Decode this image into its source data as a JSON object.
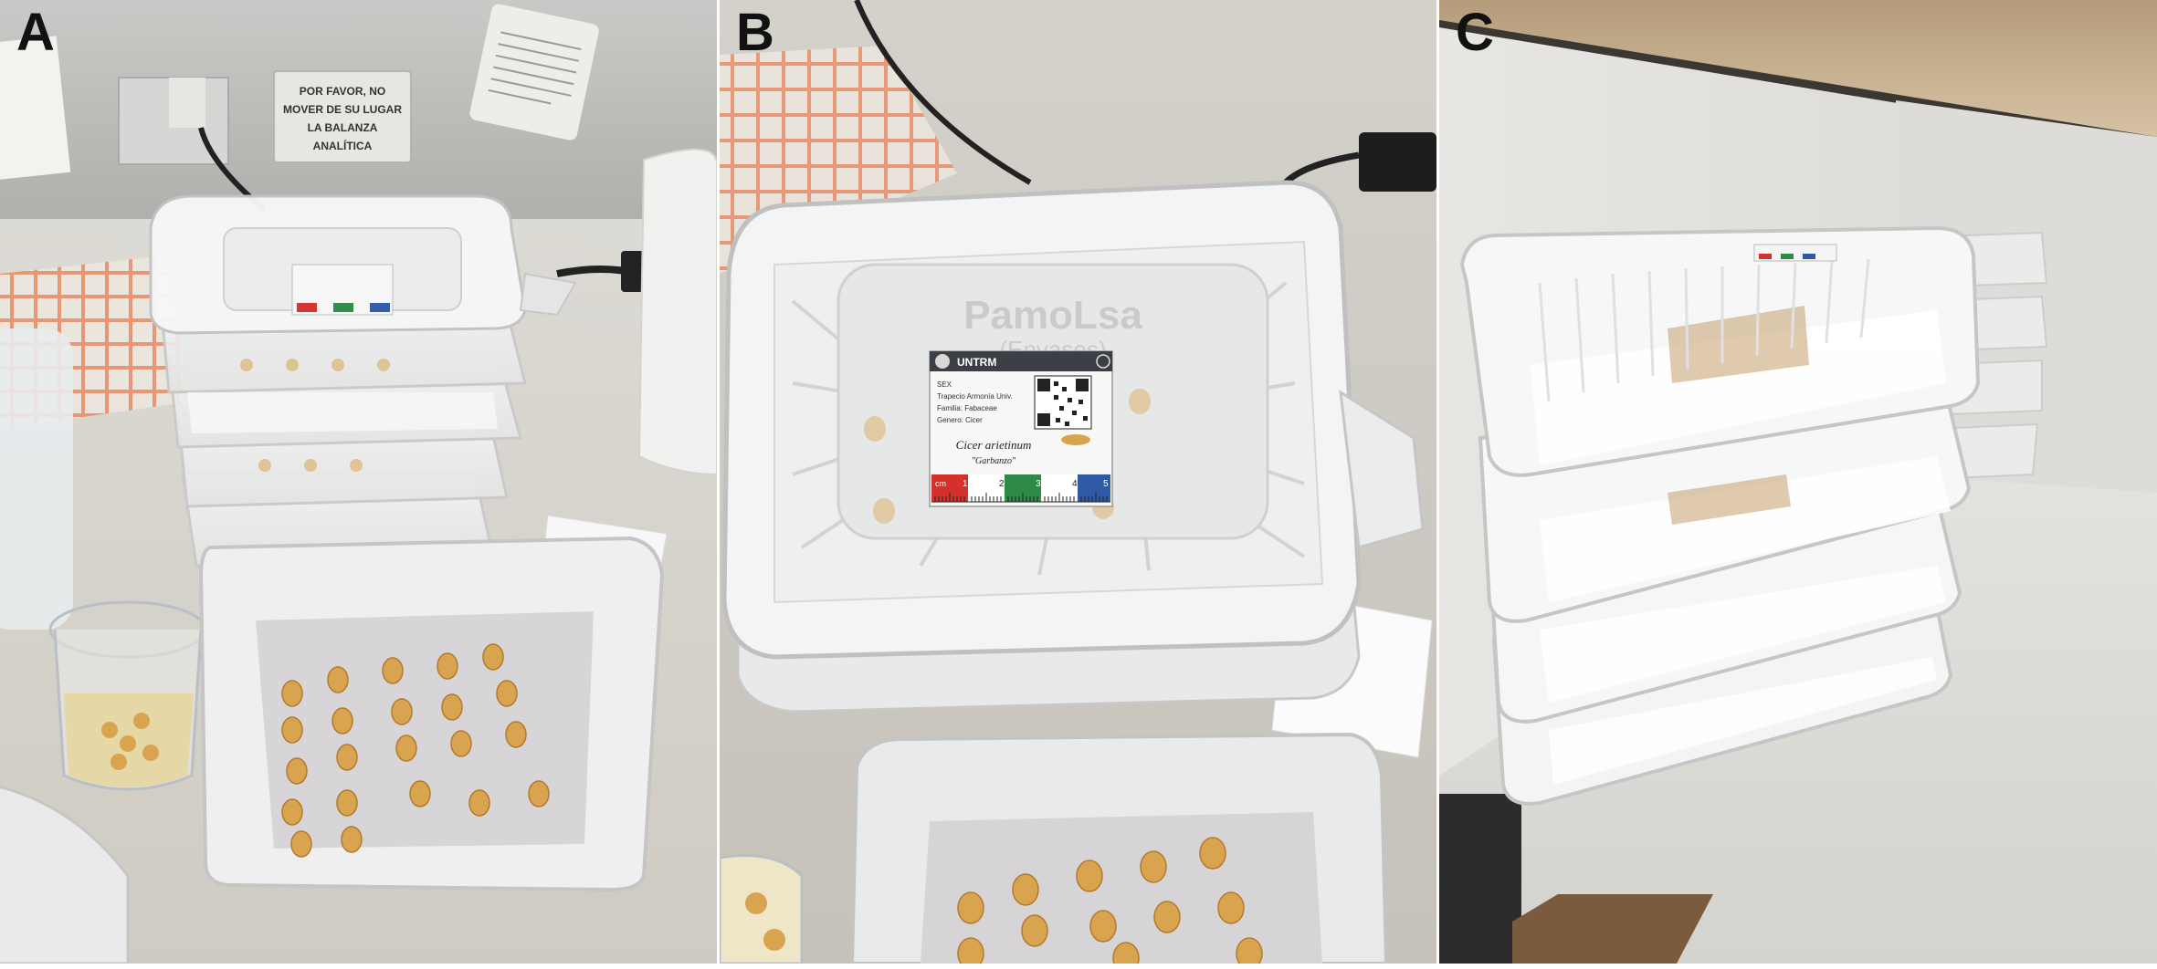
{
  "panels": [
    {
      "letter": "A"
    },
    {
      "letter": "B"
    },
    {
      "letter": "C"
    }
  ],
  "wall_sign": {
    "line1": "POR FAVOR, NO",
    "line2": "MOVER DE SU LUGAR",
    "line3": "LA BALANZA",
    "line4": "ANALÍTICA"
  },
  "box_lid": {
    "brand": "PamoLsa",
    "brand_sub": "(Envases)"
  },
  "label_card": {
    "header": "UNTRM",
    "lines": [
      "SEX",
      "Trapecio Armonía Univ.",
      "Familia: Fabaceae",
      "Genero: Cicer"
    ],
    "species": "Cicer arietinum",
    "common": "\"Garbanzo\"",
    "scale_unit": "cm",
    "scale_ticks": [
      "1",
      "2",
      "3",
      "4",
      "5"
    ]
  },
  "colors": {
    "label_red": "#d4312c",
    "label_green": "#2e8b46",
    "label_blue": "#2f5aa8",
    "chickpea": "#d9a44f"
  }
}
